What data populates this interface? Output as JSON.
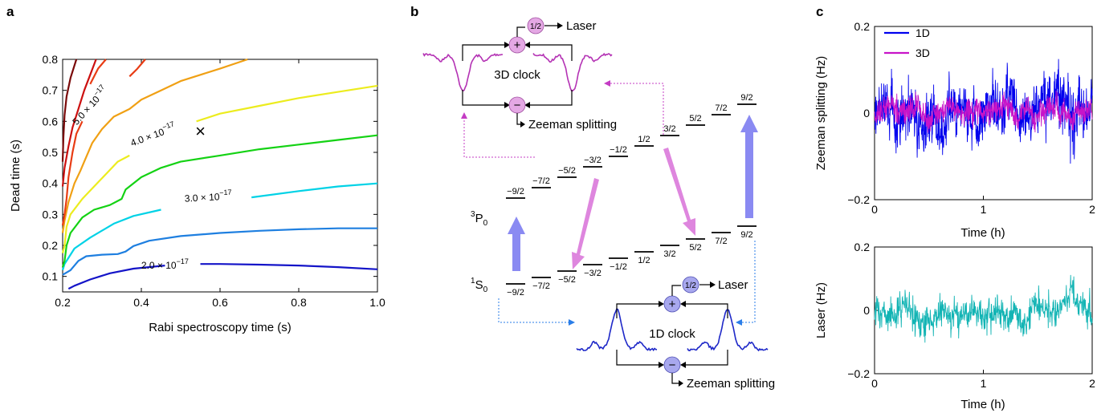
{
  "panels": {
    "a": {
      "label": "a",
      "chart_data": {
        "type": "line",
        "title": "",
        "xlabel": "Rabi spectroscopy time (s)",
        "ylabel": "Dead time (s)",
        "xlim": [
          0.2,
          1.0
        ],
        "ylim": [
          0.05,
          0.8
        ],
        "x_ticks": [
          0.2,
          0.4,
          0.6,
          0.8,
          1.0
        ],
        "x_tick_labels": [
          "0.2",
          "0.4",
          "0.6",
          "0.8",
          "1.0"
        ],
        "y_ticks": [
          0.1,
          0.2,
          0.3,
          0.4,
          0.5,
          0.6,
          0.7,
          0.8
        ],
        "y_tick_labels": [
          "0.1",
          "0.2",
          "0.3",
          "0.4",
          "0.5",
          "0.6",
          "0.7",
          "0.8"
        ],
        "grid": false,
        "marker": {
          "x": 0.55,
          "y": 0.57,
          "symbol": "×"
        },
        "contour_labels": [
          {
            "text": "2.0 × 10",
            "exp": "−17",
            "x": 0.46,
            "y": 0.135,
            "angle": 0
          },
          {
            "text": "3.0 × 10",
            "exp": "−17",
            "x": 0.57,
            "y": 0.355,
            "angle": -3
          },
          {
            "text": "4.0 × 10",
            "exp": "−17",
            "x": 0.43,
            "y": 0.555,
            "angle": -20
          },
          {
            "text": "5.0 × 10",
            "exp": "−17",
            "x": 0.27,
            "y": 0.65,
            "angle": -48
          }
        ],
        "series": [
          {
            "color": "#1414c8",
            "segments": [
              [
                [
                  0.215,
                  0.06
                ],
                [
                  0.23,
                  0.07
                ],
                [
                  0.27,
                  0.09
                ],
                [
                  0.32,
                  0.11
                ],
                [
                  0.38,
                  0.125
                ],
                [
                  0.46,
                  0.135
                ]
              ],
              [
                [
                  0.55,
                  0.14
                ],
                [
                  0.6,
                  0.14
                ],
                [
                  0.7,
                  0.138
                ],
                [
                  0.8,
                  0.135
                ],
                [
                  0.9,
                  0.13
                ],
                [
                  1.0,
                  0.123
                ]
              ]
            ]
          },
          {
            "color": "#1e7fe0",
            "segments": [
              [
                [
                  0.2,
                  0.105
                ],
                [
                  0.22,
                  0.12
                ],
                [
                  0.24,
                  0.15
                ],
                [
                  0.26,
                  0.165
                ],
                [
                  0.3,
                  0.17
                ],
                [
                  0.34,
                  0.172
                ],
                [
                  0.36,
                  0.18
                ],
                [
                  0.38,
                  0.198
                ],
                [
                  0.42,
                  0.215
                ],
                [
                  0.5,
                  0.23
                ],
                [
                  0.6,
                  0.24
                ],
                [
                  0.7,
                  0.247
                ],
                [
                  0.8,
                  0.252
                ],
                [
                  0.9,
                  0.255
                ],
                [
                  1.0,
                  0.255
                ]
              ]
            ]
          },
          {
            "color": "#00d2e6",
            "segments": [
              [
                [
                  0.2,
                  0.12
                ],
                [
                  0.205,
                  0.14
                ],
                [
                  0.215,
                  0.16
                ],
                [
                  0.23,
                  0.19
                ],
                [
                  0.27,
                  0.225
                ],
                [
                  0.33,
                  0.27
                ],
                [
                  0.38,
                  0.295
                ],
                [
                  0.45,
                  0.315
                ]
              ],
              [
                [
                  0.68,
                  0.355
                ],
                [
                  0.8,
                  0.375
                ],
                [
                  0.9,
                  0.39
                ],
                [
                  1.0,
                  0.4
                ]
              ]
            ]
          },
          {
            "color": "#14d214",
            "segments": [
              [
                [
                  0.2,
                  0.13
                ],
                [
                  0.205,
                  0.15
                ],
                [
                  0.21,
                  0.2
                ],
                [
                  0.22,
                  0.24
                ],
                [
                  0.25,
                  0.29
                ],
                [
                  0.28,
                  0.315
                ],
                [
                  0.32,
                  0.33
                ],
                [
                  0.35,
                  0.35
                ],
                [
                  0.36,
                  0.38
                ],
                [
                  0.4,
                  0.42
                ],
                [
                  0.45,
                  0.45
                ],
                [
                  0.5,
                  0.47
                ],
                [
                  0.6,
                  0.49
                ],
                [
                  0.7,
                  0.51
                ],
                [
                  0.8,
                  0.525
                ],
                [
                  0.9,
                  0.54
                ],
                [
                  1.0,
                  0.555
                ]
              ]
            ]
          },
          {
            "color": "#ecec1e",
            "segments": [
              [
                [
                  0.2,
                  0.175
                ],
                [
                  0.205,
                  0.2
                ],
                [
                  0.21,
                  0.26
                ],
                [
                  0.22,
                  0.3
                ],
                [
                  0.25,
                  0.35
                ],
                [
                  0.28,
                  0.39
                ],
                [
                  0.31,
                  0.43
                ],
                [
                  0.34,
                  0.47
                ],
                [
                  0.37,
                  0.49
                ]
              ],
              [
                [
                  0.54,
                  0.6
                ],
                [
                  0.6,
                  0.625
                ],
                [
                  0.7,
                  0.65
                ],
                [
                  0.8,
                  0.675
                ],
                [
                  0.9,
                  0.695
                ],
                [
                  1.0,
                  0.715
                ]
              ]
            ]
          },
          {
            "color": "#f0a014",
            "segments": [
              [
                [
                  0.2,
                  0.24
                ],
                [
                  0.205,
                  0.28
                ],
                [
                  0.215,
                  0.34
                ],
                [
                  0.23,
                  0.4
                ],
                [
                  0.245,
                  0.44
                ],
                [
                  0.255,
                  0.47
                ],
                [
                  0.275,
                  0.53
                ],
                [
                  0.3,
                  0.575
                ],
                [
                  0.33,
                  0.615
                ],
                [
                  0.37,
                  0.64
                ],
                [
                  0.4,
                  0.67
                ],
                [
                  0.45,
                  0.7
                ],
                [
                  0.5,
                  0.73
                ],
                [
                  0.55,
                  0.75
                ],
                [
                  0.6,
                  0.77
                ],
                [
                  0.67,
                  0.8
                ]
              ]
            ]
          },
          {
            "color": "#e83c14",
            "segments": [
              [
                [
                  0.2,
                  0.265
                ],
                [
                  0.205,
                  0.3
                ],
                [
                  0.21,
                  0.35
                ],
                [
                  0.215,
                  0.42
                ],
                [
                  0.225,
                  0.5
                ],
                [
                  0.235,
                  0.56
                ],
                [
                  0.25,
                  0.6
                ]
              ],
              [
                [
                  0.27,
                  0.72
                ],
                [
                  0.29,
                  0.77
                ],
                [
                  0.31,
                  0.8
                ]
              ],
              [
                [
                  0.37,
                  0.745
                ],
                [
                  0.39,
                  0.77
                ],
                [
                  0.41,
                  0.8
                ]
              ]
            ]
          },
          {
            "color": "#cc1010",
            "segments": [
              [
                [
                  0.2,
                  0.39
                ],
                [
                  0.205,
                  0.45
                ],
                [
                  0.215,
                  0.52
                ],
                [
                  0.225,
                  0.58
                ],
                [
                  0.24,
                  0.64
                ],
                [
                  0.255,
                  0.7
                ],
                [
                  0.27,
                  0.75
                ],
                [
                  0.285,
                  0.8
                ]
              ]
            ]
          },
          {
            "color": "#7a0a0a",
            "segments": [
              [
                [
                  0.2,
                  0.47
                ],
                [
                  0.202,
                  0.55
                ],
                [
                  0.205,
                  0.62
                ],
                [
                  0.21,
                  0.68
                ],
                [
                  0.22,
                  0.74
                ],
                [
                  0.235,
                  0.8
                ]
              ]
            ]
          }
        ]
      }
    },
    "b": {
      "label": "b",
      "upper_state": {
        "sup": "3",
        "main": "P",
        "sub": "0"
      },
      "lower_state": {
        "sup": "1",
        "main": "S",
        "sub": "0"
      },
      "upper_mF": [
        "−9/2",
        "−7/2",
        "−5/2",
        "−3/2",
        "−1/2",
        "1/2",
        "3/2",
        "5/2",
        "7/2",
        "9/2"
      ],
      "lower_mF": [
        "−9/2",
        "−7/2",
        "−5/2",
        "−3/2",
        "−1/2",
        "1/2",
        "3/2",
        "5/2",
        "7/2",
        "9/2"
      ],
      "clock3d": {
        "title": "3D clock",
        "sum_label": "+",
        "diff_label": "−",
        "half": "1/2",
        "out_sum": "Laser",
        "out_diff": "Zeeman splitting",
        "color": "#b432b4"
      },
      "clock1d": {
        "title": "1D clock",
        "sum_label": "+",
        "diff_label": "−",
        "half": "1/2",
        "out_sum": "Laser",
        "out_diff": "Zeeman splitting",
        "color": "#1e28c8"
      },
      "arrow_colors": {
        "sigma_1d": "#7878f0",
        "sigma_3d": "#d878d8"
      }
    },
    "c": {
      "label": "c",
      "chart_data": [
        {
          "type": "line",
          "xlabel": "Time (h)",
          "ylabel": "Zeeman splitting (Hz)",
          "xlim": [
            0,
            2
          ],
          "ylim": [
            -0.2,
            0.2
          ],
          "x_ticks": [
            0,
            1,
            2
          ],
          "x_tick_labels": [
            "0",
            "1",
            "2"
          ],
          "y_ticks": [
            -0.2,
            0,
            0.2
          ],
          "y_tick_labels": [
            "−0.2",
            "0",
            "0.2"
          ],
          "legend": "top-left",
          "series": [
            {
              "name": "1D",
              "color": "#0000ee",
              "n": 900,
              "sigma": 0.055,
              "seed": 11
            },
            {
              "name": "3D",
              "color": "#c814c8",
              "n": 900,
              "sigma": 0.025,
              "seed": 23
            }
          ]
        },
        {
          "type": "line",
          "xlabel": "Time (h)",
          "ylabel": "Laser (Hz)",
          "xlim": [
            0,
            2
          ],
          "ylim": [
            -0.2,
            0.2
          ],
          "x_ticks": [
            0,
            1,
            2
          ],
          "x_tick_labels": [
            "0",
            "1",
            "2"
          ],
          "y_ticks": [
            -0.2,
            0,
            0.2
          ],
          "y_tick_labels": [
            "−0.2",
            "0",
            "0.2"
          ],
          "series": [
            {
              "color": "#12b4b4",
              "n": 700,
              "sigma": 0.045,
              "seed": 37
            }
          ]
        }
      ]
    }
  }
}
